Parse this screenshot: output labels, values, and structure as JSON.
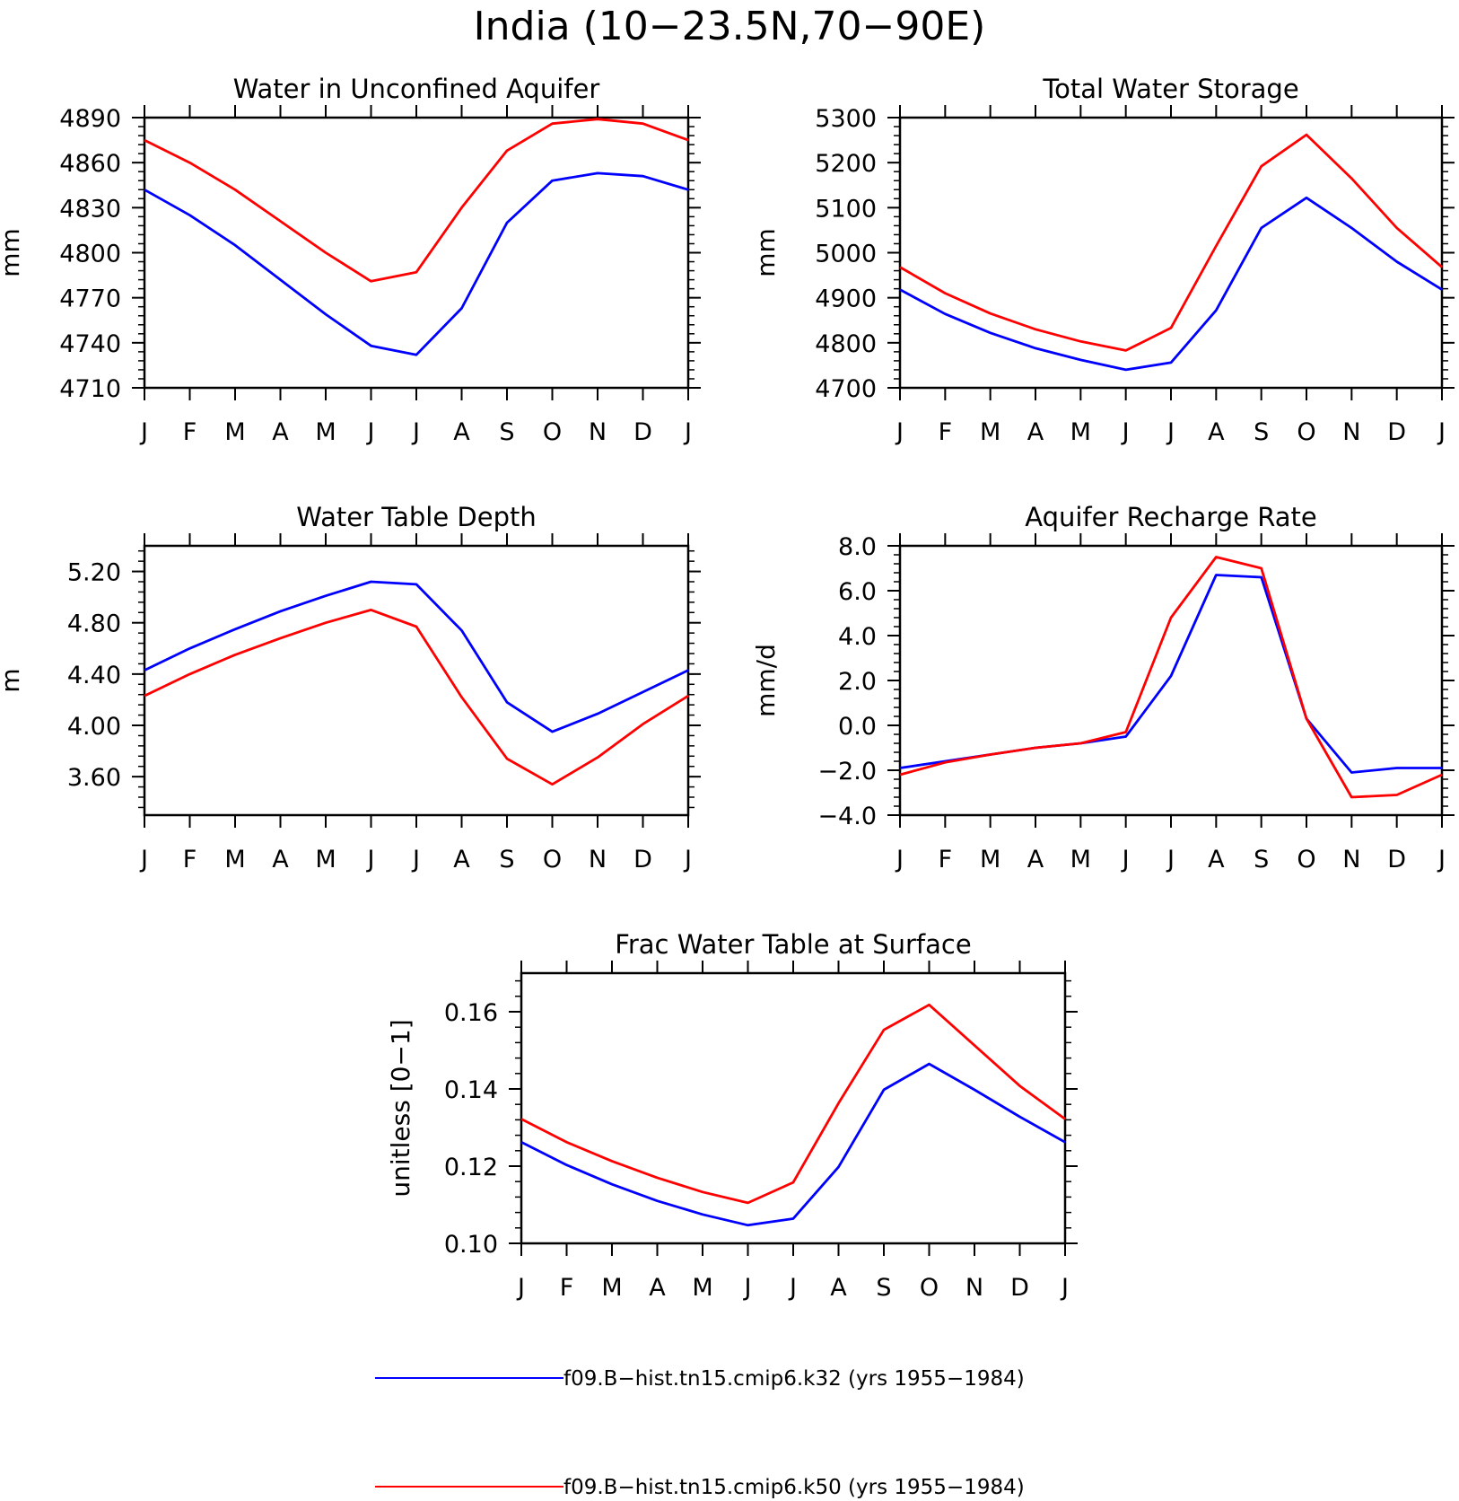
{
  "figure": {
    "title": "India (10−23.5N,70−90E)"
  },
  "colors": {
    "k32": "#0000ff",
    "k50": "#ff0000"
  },
  "legend": [
    {
      "label": "f09.B−hist.tn15.cmip6.k32 (yrs 1955−1984)",
      "color": "#0000ff"
    },
    {
      "label": "f09.B−hist.tn15.cmip6.k50 (yrs 1955−1984)",
      "color": "#ff0000"
    }
  ],
  "chart_data": [
    {
      "type": "line",
      "title": "Water in Unconfined Aquifer",
      "ylabel": "mm",
      "xlabel": "",
      "categories": [
        "J",
        "F",
        "M",
        "A",
        "M",
        "J",
        "J",
        "A",
        "S",
        "O",
        "N",
        "D",
        "J"
      ],
      "ylim": [
        4710,
        4890
      ],
      "yticks": [
        4710,
        4740,
        4770,
        4800,
        4830,
        4860,
        4890
      ],
      "yticklabels": [
        "4710",
        "4740",
        "4770",
        "4800",
        "4830",
        "4860",
        "4890"
      ],
      "series": [
        {
          "key": "k32",
          "color": "#0000ff",
          "values": [
            4842,
            4825,
            4805,
            4782,
            4759,
            4738,
            4732,
            4763,
            4820,
            4848,
            4853,
            4851,
            4842
          ]
        },
        {
          "key": "k50",
          "color": "#ff0000",
          "values": [
            4875,
            4860,
            4842,
            4821,
            4800,
            4781,
            4787,
            4830,
            4868,
            4886,
            4889,
            4886,
            4875
          ]
        }
      ]
    },
    {
      "type": "line",
      "title": "Total Water Storage",
      "ylabel": "mm",
      "xlabel": "",
      "categories": [
        "J",
        "F",
        "M",
        "A",
        "M",
        "J",
        "J",
        "A",
        "S",
        "O",
        "N",
        "D",
        "J"
      ],
      "ylim": [
        4700,
        5300
      ],
      "yticks": [
        4700,
        4800,
        4900,
        5000,
        5100,
        5200,
        5300
      ],
      "yticklabels": [
        "4700",
        "4800",
        "4900",
        "5000",
        "5100",
        "5200",
        "5300"
      ],
      "series": [
        {
          "key": "k32",
          "color": "#0000ff",
          "values": [
            4918,
            4864,
            4822,
            4788,
            4762,
            4740,
            4756,
            4872,
            5055,
            5122,
            5055,
            4980,
            4918
          ]
        },
        {
          "key": "k50",
          "color": "#ff0000",
          "values": [
            4968,
            4910,
            4865,
            4830,
            4803,
            4783,
            4833,
            5015,
            5192,
            5262,
            5165,
            5055,
            4968
          ]
        }
      ]
    },
    {
      "type": "line",
      "title": "Water Table Depth",
      "ylabel": "m",
      "xlabel": "",
      "categories": [
        "J",
        "F",
        "M",
        "A",
        "M",
        "J",
        "J",
        "A",
        "S",
        "O",
        "N",
        "D",
        "J"
      ],
      "ylim": [
        3.3,
        5.4
      ],
      "yticks": [
        3.6,
        4.0,
        4.4,
        4.8,
        5.2
      ],
      "yticklabels": [
        "3.60",
        "4.00",
        "4.40",
        "4.80",
        "5.20"
      ],
      "series": [
        {
          "key": "k32",
          "color": "#0000ff",
          "values": [
            4.43,
            4.6,
            4.75,
            4.89,
            5.01,
            5.12,
            5.1,
            4.74,
            4.18,
            3.95,
            4.09,
            4.26,
            4.43
          ]
        },
        {
          "key": "k50",
          "color": "#ff0000",
          "values": [
            4.23,
            4.4,
            4.55,
            4.68,
            4.8,
            4.9,
            4.77,
            4.22,
            3.74,
            3.54,
            3.75,
            4.01,
            4.23
          ]
        }
      ]
    },
    {
      "type": "line",
      "title": "Aquifer Recharge Rate",
      "ylabel": "mm/d",
      "xlabel": "",
      "categories": [
        "J",
        "F",
        "M",
        "A",
        "M",
        "J",
        "J",
        "A",
        "S",
        "O",
        "N",
        "D",
        "J"
      ],
      "ylim": [
        -4,
        8
      ],
      "yticks": [
        -4,
        -2,
        0,
        2,
        4,
        6,
        8
      ],
      "yticklabels": [
        "−4.0",
        "−2.0",
        "0.0",
        "2.0",
        "4.0",
        "6.0",
        "8.0"
      ],
      "series": [
        {
          "key": "k32",
          "color": "#0000ff",
          "values": [
            -1.9,
            -1.6,
            -1.3,
            -1.0,
            -0.8,
            -0.5,
            2.2,
            6.7,
            6.6,
            0.3,
            -2.1,
            -1.9,
            -1.9
          ]
        },
        {
          "key": "k50",
          "color": "#ff0000",
          "values": [
            -2.2,
            -1.65,
            -1.3,
            -1.0,
            -0.8,
            -0.3,
            4.8,
            7.5,
            7.0,
            0.3,
            -3.2,
            -3.1,
            -2.2
          ]
        }
      ]
    },
    {
      "type": "line",
      "title": "Frac Water Table at Surface",
      "ylabel": "unitless [0−1]",
      "xlabel": "",
      "categories": [
        "J",
        "F",
        "M",
        "A",
        "M",
        "J",
        "J",
        "A",
        "S",
        "O",
        "N",
        "D",
        "J"
      ],
      "ylim": [
        0.1,
        0.17
      ],
      "yticks": [
        0.1,
        0.12,
        0.14,
        0.16
      ],
      "yticklabels": [
        "0.10",
        "0.12",
        "0.14",
        "0.16"
      ],
      "series": [
        {
          "key": "k32",
          "color": "#0000ff",
          "values": [
            0.1262,
            0.1203,
            0.1153,
            0.111,
            0.1075,
            0.1047,
            0.1064,
            0.1198,
            0.1398,
            0.1465,
            0.1398,
            0.1328,
            0.1262
          ]
        },
        {
          "key": "k50",
          "color": "#ff0000",
          "values": [
            0.1322,
            0.1262,
            0.1213,
            0.117,
            0.1133,
            0.1105,
            0.1158,
            0.1363,
            0.1553,
            0.1618,
            0.1513,
            0.1408,
            0.1322
          ]
        }
      ]
    }
  ]
}
